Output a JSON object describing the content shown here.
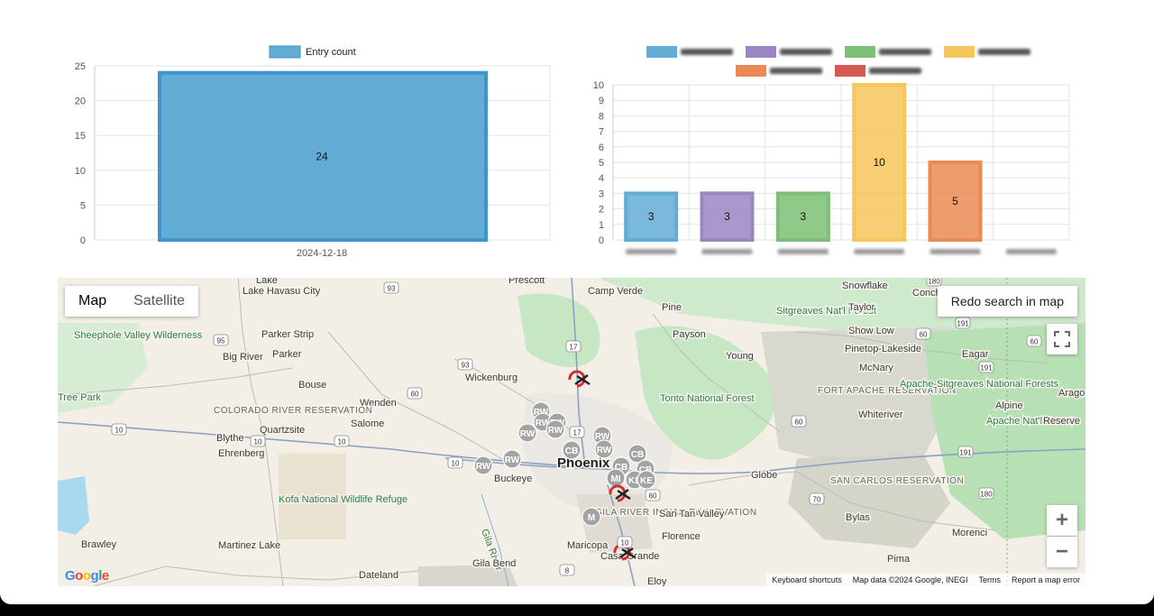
{
  "charts": {
    "left": {
      "legend": "Entry count",
      "color": "#63acd6",
      "border": "#3f94c8",
      "y_ticks": [
        "0",
        "5",
        "10",
        "15",
        "20",
        "25"
      ],
      "x_label": "2024-12-18",
      "value_label": "24"
    },
    "right": {
      "y_ticks": [
        "0",
        "1",
        "2",
        "3",
        "4",
        "5",
        "6",
        "7",
        "8",
        "9",
        "10"
      ],
      "bar_labels": [
        "3",
        "3",
        "3",
        "10",
        "5"
      ]
    }
  },
  "chart_data": [
    {
      "type": "bar",
      "categories": [
        "2024-12-18"
      ],
      "series": [
        {
          "name": "Entry count",
          "values": [
            24
          ]
        }
      ],
      "ylim": [
        0,
        25
      ],
      "legend": "top",
      "grid": true
    },
    {
      "type": "bar",
      "categories": [
        "",
        "",
        "",
        "",
        "",
        ""
      ],
      "values": [
        3,
        3,
        3,
        10,
        5,
        0
      ],
      "colors": [
        "#63acd6",
        "#9b86c4",
        "#7cc076",
        "#f6c55b",
        "#eb8a55",
        "#d65a52"
      ],
      "ylim": [
        0,
        10
      ],
      "legend": "top",
      "grid": true
    }
  ],
  "map": {
    "type_map": "Map",
    "type_satellite": "Satellite",
    "redo_button": "Redo search in map",
    "zoom_in": "+",
    "zoom_out": "−",
    "fullscreen_icon": "fullscreen-icon",
    "google": "Google",
    "footer": {
      "shortcuts": "Keyboard shortcuts",
      "data": "Map data ©2024 Google, INEGI",
      "terms": "Terms",
      "report": "Report a map error"
    },
    "places": {
      "lake_havasu": "Lake Havasu City",
      "lake": "Lake",
      "prescott": "Prescott",
      "camp_verde": "Camp Verde",
      "snowflake": "Snowflake",
      "concho": "Concho",
      "sheephole": "Sheephole Valley Wilderness",
      "parker_strip": "Parker Strip",
      "parker": "Parker",
      "big_river": "Big River",
      "pine": "Pine",
      "payson": "Payson",
      "sitgreaves": "Sitgreaves Nat'l Forest",
      "taylor": "Taylor",
      "show_low": "Show Low",
      "pinetop": "Pinetop-Lakeside",
      "young": "Young",
      "mcnary": "McNary",
      "eagar": "Eagar",
      "wickenburg": "Wickenburg",
      "bouse": "Bouse",
      "wenden": "Wenden",
      "colorado_river": "COLORADO RIVER RESERVATION",
      "tonto": "Tonto National Forest",
      "fort_apache": "FORT APACHE RESERVATION",
      "apache_sitgreaves": "Apache-Sitgreaves National Forests",
      "whiteriver": "Whiteriver",
      "alpine": "Alpine",
      "apache_forest": "Apache Nat'l Forest",
      "reserve": "Reserve",
      "salome": "Salome",
      "quartzsite": "Quartzsite",
      "blythe": "Blythe",
      "ehrenberg": "Ehrenberg",
      "phoenix": "Phoenix",
      "buckeye": "Buckeye",
      "globe": "Globe",
      "san_carlos": "SAN CARLOS RESERVATION",
      "kofa": "Kofa National Wildlife Refuge",
      "gila_river": "Gila River",
      "gila_reservation": "GILA RIVER INDIAN RESERVATION",
      "san_tan": "San Tan Valley",
      "florence": "Florence",
      "bylas": "Bylas",
      "morenci": "Morenci",
      "brawley": "Brawley",
      "martinez": "Martinez Lake",
      "maricopa": "Maricopa",
      "casa_grande": "Casa Grande",
      "gila_bend": "Gila Bend",
      "dateland": "Dateland",
      "eloy": "Eloy",
      "pima": "Pima",
      "tree_park": "Tree Park",
      "arago": "Arago"
    },
    "markers": {
      "rw": "RW",
      "cb": "CB",
      "ke": "KE",
      "mi": "MI",
      "mt": "M"
    }
  }
}
